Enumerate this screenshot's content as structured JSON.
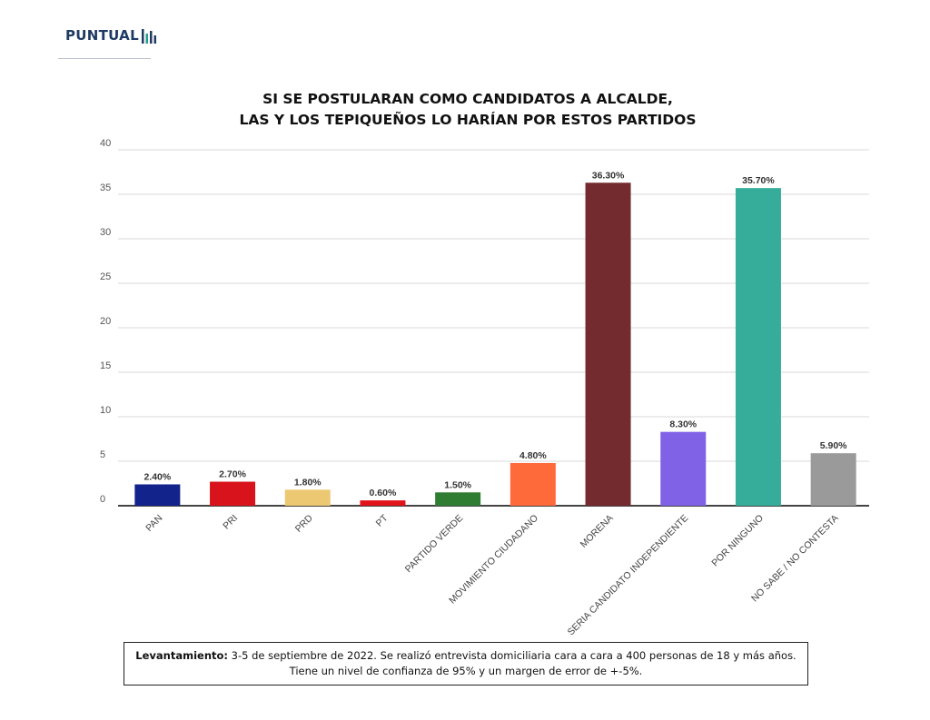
{
  "logo": {
    "text": "PUNTUAL"
  },
  "title_lines": [
    "SI SE POSTULARAN COMO CANDIDATOS A ALCALDE,",
    "LAS Y LOS TEPIQUEÑOS LO HARÍAN POR ESTOS PARTIDOS"
  ],
  "chart_data": {
    "type": "bar",
    "title": "SI SE POSTULARAN COMO CANDIDATOS A ALCALDE, LAS Y LOS TEPIQUEÑOS LO HARÍAN POR ESTOS PARTIDOS",
    "categories": [
      "PAN",
      "PRI",
      "PRD",
      "PT",
      "PARTIDO VERDE",
      "MOVIMIENTO CIUDADANO",
      "MORENA",
      "SERIA CANDIDATO INDEPENDIENTE",
      "POR NINGUNO",
      "NO SABE / NO CONTESTA"
    ],
    "values": [
      2.4,
      2.7,
      1.8,
      0.6,
      1.5,
      4.8,
      36.3,
      8.3,
      35.7,
      5.9
    ],
    "value_labels": [
      "2.40%",
      "2.70%",
      "1.80%",
      "0.60%",
      "1.50%",
      "4.80%",
      "36.30%",
      "8.30%",
      "35.70%",
      "5.90%"
    ],
    "colors": [
      "#13238c",
      "#d8131b",
      "#ecc872",
      "#e0141a",
      "#2f7d32",
      "#ff6a3b",
      "#732b2f",
      "#8062e6",
      "#35ad9a",
      "#9a9a9a"
    ],
    "yticks": [
      0,
      5,
      10,
      15,
      20,
      25,
      30,
      35,
      40
    ],
    "ylim": [
      0,
      40
    ],
    "xlabel": "",
    "ylabel": "",
    "grid": true,
    "legend": "none"
  },
  "footnote": {
    "label": "Levantamiento:",
    "line1": " 3-5 de septiembre de 2022. Se realizó entrevista domiciliaria cara a cara a 400 personas de 18 y más años.",
    "line2": "Tiene un nivel de confianza de 95% y un margen de error de +-5%."
  }
}
